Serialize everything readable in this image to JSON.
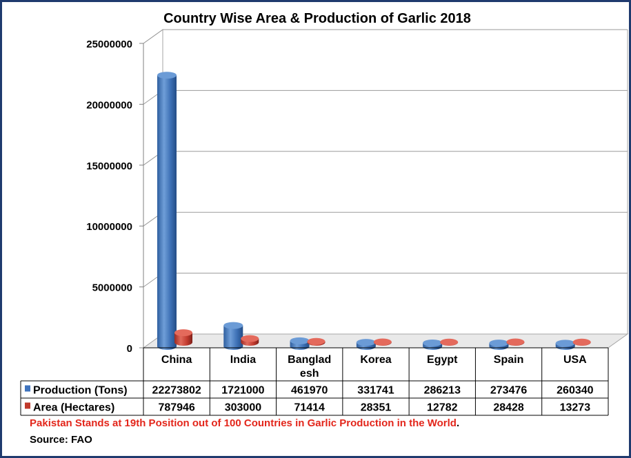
{
  "chart_data": {
    "type": "bar",
    "title": "Country Wise Area & Production of Garlic 2018",
    "categories": [
      "China",
      "India",
      "Banglad\nesh",
      "Korea",
      "Egypt",
      "Spain",
      "USA"
    ],
    "series": [
      {
        "name": "Production (Tons)",
        "values": [
          22273802,
          1721000,
          461970,
          331741,
          286213,
          273476,
          260340
        ],
        "color": "#3f73bd"
      },
      {
        "name": "Area (Hectares)",
        "values": [
          787946,
          303000,
          71414,
          28351,
          12782,
          28428,
          13273
        ],
        "color": "#c0392b"
      }
    ],
    "ylim": [
      0,
      25000000
    ],
    "yticks": [
      0,
      5000000,
      10000000,
      15000000,
      20000000,
      25000000
    ],
    "yticks_labels": [
      "0",
      "5000000",
      "10000000",
      "15000000",
      "20000000",
      "25000000"
    ],
    "grid": true,
    "legend": "data-table"
  },
  "footer": {
    "note_red": "Pakistan Stands at 19th Position out of 100 Countries in Garlic Production in the World",
    "note_dot": ".",
    "source": "Source: FAO"
  },
  "colors": {
    "frame": "#1f3a6e",
    "note": "#e3261b"
  }
}
